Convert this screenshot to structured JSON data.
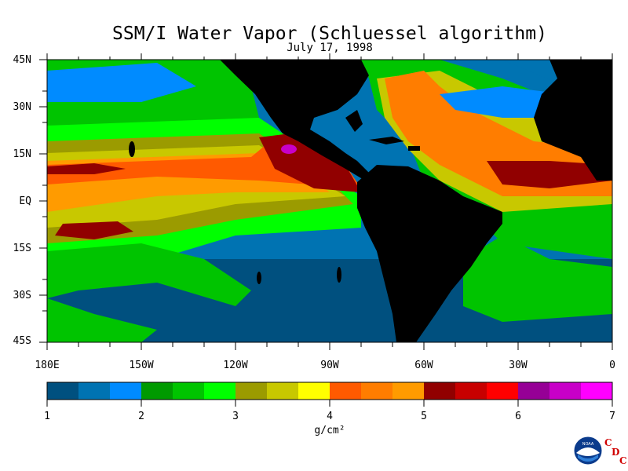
{
  "title": "SSM/I Water Vapor (Schluessel algorithm)",
  "date": "July 17, 1998",
  "lat_labels": [
    "45N",
    "30N",
    "15N",
    "EQ",
    "15S",
    "30S",
    "45S"
  ],
  "lon_labels": [
    "180E",
    "150W",
    "120W",
    "90W",
    "60W",
    "30W",
    "0"
  ],
  "colorbar": {
    "ticks": [
      "1",
      "2",
      "3",
      "4",
      "5",
      "6",
      "7"
    ],
    "units": "g/cm²",
    "colors": [
      "#00507f",
      "#0073b2",
      "#008bff",
      "#009a00",
      "#00c400",
      "#00ff00",
      "#9b9b00",
      "#c8c800",
      "#ffff00",
      "#ff5a00",
      "#ff7d00",
      "#ff9b00",
      "#910000",
      "#c80000",
      "#ff0000",
      "#960096",
      "#c800c8",
      "#ff00ff"
    ]
  },
  "logo": {
    "agency": "NOAA",
    "letters": [
      "C",
      "D",
      "C"
    ]
  },
  "colors": {
    "land": "#000000",
    "frame": "#000000"
  }
}
